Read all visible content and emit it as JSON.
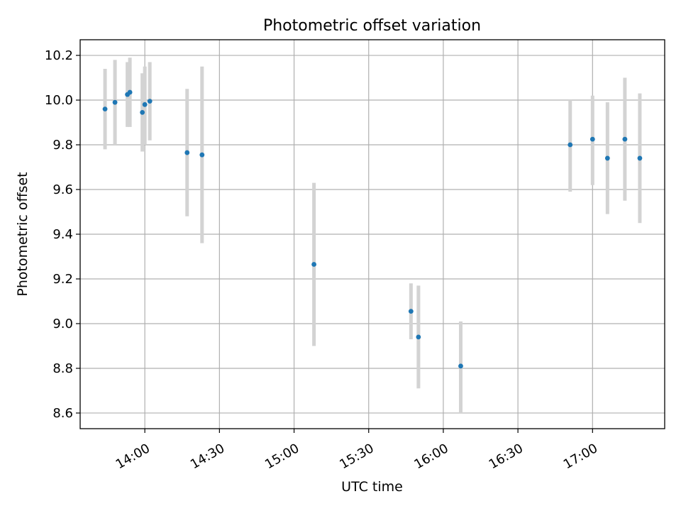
{
  "chart_data": {
    "type": "scatter",
    "title": "Photometric offset variation",
    "xlabel": "UTC time",
    "ylabel": "Photometric offset",
    "grid": true,
    "legend": "none",
    "xlim": [
      "13:34",
      "17:29"
    ],
    "ylim": [
      8.53,
      10.27
    ],
    "x_ticks": [
      "14:00",
      "14:30",
      "15:00",
      "15:30",
      "16:00",
      "16:30",
      "17:00"
    ],
    "y_ticks": [
      "8.6",
      "8.8",
      "9.0",
      "9.2",
      "9.4",
      "9.6",
      "9.8",
      "10.0",
      "10.2"
    ],
    "series": [
      {
        "marker_color": "#1f77b4",
        "errorbar_color": "#d3d3d3",
        "points": [
          {
            "x": "13:44",
            "y": 9.96,
            "ylow": 9.78,
            "yhigh": 10.14
          },
          {
            "x": "13:48",
            "y": 9.99,
            "ylow": 9.8,
            "yhigh": 10.18
          },
          {
            "x": "13:53",
            "y": 10.025,
            "ylow": 9.88,
            "yhigh": 10.17
          },
          {
            "x": "13:54",
            "y": 10.035,
            "ylow": 9.88,
            "yhigh": 10.19
          },
          {
            "x": "13:59",
            "y": 9.945,
            "ylow": 9.77,
            "yhigh": 10.12
          },
          {
            "x": "14:00",
            "y": 9.98,
            "ylow": 9.8,
            "yhigh": 10.15
          },
          {
            "x": "14:02",
            "y": 9.995,
            "ylow": 9.82,
            "yhigh": 10.17
          },
          {
            "x": "14:17",
            "y": 9.765,
            "ylow": 9.48,
            "yhigh": 10.05
          },
          {
            "x": "14:23",
            "y": 9.755,
            "ylow": 9.36,
            "yhigh": 10.15
          },
          {
            "x": "15:08",
            "y": 9.265,
            "ylow": 8.9,
            "yhigh": 9.63
          },
          {
            "x": "15:47",
            "y": 9.055,
            "ylow": 8.93,
            "yhigh": 9.18
          },
          {
            "x": "15:50",
            "y": 8.94,
            "ylow": 8.71,
            "yhigh": 9.17
          },
          {
            "x": "16:07",
            "y": 8.81,
            "ylow": 8.6,
            "yhigh": 9.01
          },
          {
            "x": "16:51",
            "y": 9.8,
            "ylow": 9.59,
            "yhigh": 10.0
          },
          {
            "x": "17:00",
            "y": 9.825,
            "ylow": 9.62,
            "yhigh": 10.02
          },
          {
            "x": "17:06",
            "y": 9.74,
            "ylow": 9.49,
            "yhigh": 9.99
          },
          {
            "x": "17:13",
            "y": 9.825,
            "ylow": 9.55,
            "yhigh": 10.1
          },
          {
            "x": "17:19",
            "y": 9.74,
            "ylow": 9.45,
            "yhigh": 10.03
          }
        ]
      }
    ]
  }
}
